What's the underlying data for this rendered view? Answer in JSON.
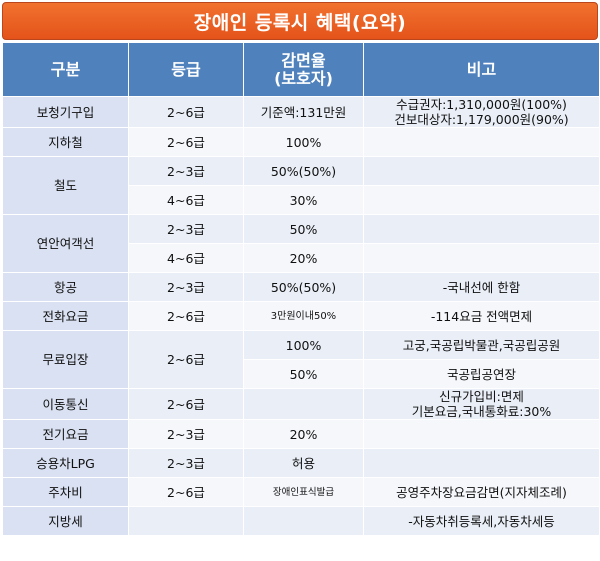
{
  "title": "장애인 등록시 혜택(요약)",
  "headers": {
    "category": "구분",
    "grade": "등급",
    "discount_line1": "감면율",
    "discount_line2": "(보호자)",
    "note": "비고"
  },
  "rows": {
    "hearing_aid": {
      "category": "보청기구입",
      "grade": "2~6급",
      "discount": "기준액:131만원",
      "note_line1": "수급권자:1,310,000원(100%)",
      "note_line2": "건보대상자:1,179,000원(90%)"
    },
    "subway": {
      "category": "지하철",
      "grade": "2~6급",
      "discount": "100%",
      "note": ""
    },
    "rail": {
      "category": "철도",
      "grade_a": "2~3급",
      "discount_a": "50%(50%)",
      "grade_b": "4~6급",
      "discount_b": "30%"
    },
    "ferry": {
      "category": "연안여객선",
      "grade_a": "2~3급",
      "discount_a": "50%",
      "grade_b": "4~6급",
      "discount_b": "20%"
    },
    "air": {
      "category": "항공",
      "grade": "2~3급",
      "discount": "50%(50%)",
      "note": "-국내선에 한함"
    },
    "phone": {
      "category": "전화요금",
      "grade": "2~6급",
      "discount": "3만원이내50%",
      "note": "-114요금 전액면제"
    },
    "admission": {
      "category": "무료입장",
      "grade": "2~6급",
      "discount_a": "100%",
      "note_a": "고궁,국공립박물관,국공립공원",
      "discount_b": "50%",
      "note_b": "국공립공연장"
    },
    "mobile": {
      "category": "이동통신",
      "grade": "2~6급",
      "discount": "",
      "note_line1": "신규가입비:면제",
      "note_line2": "기본요금,국내통화료:30%"
    },
    "electric": {
      "category": "전기요금",
      "grade": "2~3급",
      "discount": "20%",
      "note": ""
    },
    "lpg": {
      "category": "승용차LPG",
      "grade": "2~3급",
      "discount": "허용",
      "note": ""
    },
    "parking": {
      "category": "주차비",
      "grade": "2~6급",
      "discount": "장애인표식발급",
      "note": "공영주차장요금감면(지자체조례)"
    },
    "local_tax": {
      "category": "지방세",
      "grade": "",
      "discount": "",
      "note": "-자동차취등록세,자동차세등"
    }
  }
}
